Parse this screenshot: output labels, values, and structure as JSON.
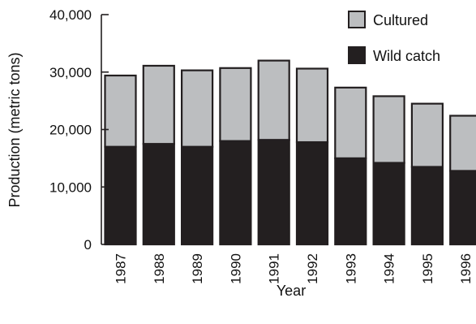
{
  "chart_data": {
    "type": "bar",
    "stacked": true,
    "title": "",
    "xlabel": "Year",
    "ylabel": "Production  (metric tons)",
    "ylim": [
      0,
      40000
    ],
    "yticks": [
      0,
      10000,
      20000,
      30000,
      40000
    ],
    "ytick_labels": [
      "0",
      "10,000",
      "20,000",
      "30,000",
      "40,000"
    ],
    "categories": [
      "1987",
      "1988",
      "1989",
      "1990",
      "1991",
      "1992",
      "1993",
      "1994",
      "1995",
      "1996"
    ],
    "series": [
      {
        "name": "Wild catch",
        "color": "#231f20",
        "values": [
          17000,
          17500,
          17000,
          18000,
          18200,
          17800,
          15000,
          14200,
          13500,
          12800
        ]
      },
      {
        "name": "Cultured",
        "color": "#bcbec0",
        "values": [
          12400,
          13600,
          13300,
          12700,
          13800,
          12800,
          12300,
          11600,
          11000,
          9600
        ]
      }
    ],
    "legend_position": "top-right",
    "grid": false
  }
}
